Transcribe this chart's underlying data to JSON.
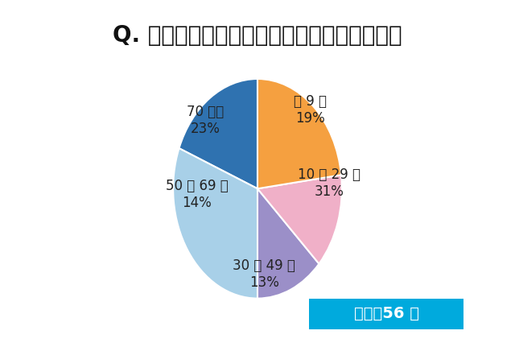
{
  "title": "Q. 子供が年間に読む本は何冊くらいですか？",
  "slices": [
    19,
    31,
    13,
    14,
    23
  ],
  "labels": [
    "～ 9 冊",
    "10 ～ 29 冊",
    "30 ～ 49 冊",
    "50 ～ 69 冊",
    "70 冊～"
  ],
  "percents": [
    "19%",
    "31%",
    "13%",
    "14%",
    "23%"
  ],
  "colors": [
    "#2F72B0",
    "#A8D0E8",
    "#9B8FC8",
    "#F0B0C8",
    "#F5A040"
  ],
  "startangle": 90,
  "average_text": "平均：56 冊",
  "average_box_color": "#00AADD",
  "background_color": "#FFFFFF",
  "title_fontsize": 20,
  "label_fontsize": 12,
  "pct_fontsize": 14,
  "average_fontsize": 14
}
